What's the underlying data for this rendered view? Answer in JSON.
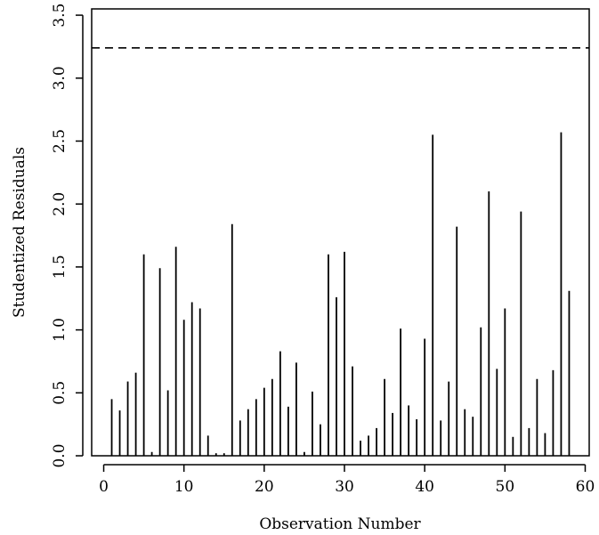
{
  "chart_data": {
    "type": "bar",
    "xlabel": "Observation Number",
    "ylabel": "Studentized Residuals",
    "xlim": [
      -1.5,
      60.5
    ],
    "ylim": [
      0.0,
      3.55
    ],
    "x_ticks": [
      0,
      10,
      20,
      30,
      40,
      50,
      60
    ],
    "x_tick_labels": [
      "0",
      "10",
      "20",
      "30",
      "40",
      "50",
      "60"
    ],
    "y_ticks": [
      0.0,
      0.5,
      1.0,
      1.5,
      2.0,
      2.5,
      3.0,
      3.5
    ],
    "y_tick_labels": [
      "0.0",
      "0.5",
      "1.0",
      "1.5",
      "2.0",
      "2.5",
      "3.0",
      "3.5"
    ],
    "reference_line": {
      "y": 3.24,
      "style": "dashed"
    },
    "grid": false,
    "x": [
      1,
      2,
      3,
      4,
      5,
      6,
      7,
      8,
      9,
      10,
      11,
      12,
      13,
      14,
      15,
      16,
      17,
      18,
      19,
      20,
      21,
      22,
      23,
      24,
      25,
      26,
      27,
      28,
      29,
      30,
      31,
      32,
      33,
      34,
      35,
      36,
      37,
      38,
      39,
      40,
      41,
      42,
      43,
      44,
      45,
      46,
      47,
      48,
      49,
      50,
      51,
      52,
      53,
      54,
      55,
      56,
      57,
      58
    ],
    "values": [
      0.45,
      0.36,
      0.59,
      0.66,
      1.6,
      0.03,
      1.49,
      0.52,
      1.66,
      1.08,
      1.22,
      1.17,
      0.16,
      0.02,
      0.02,
      1.84,
      0.28,
      0.37,
      0.45,
      0.54,
      0.61,
      0.83,
      0.39,
      0.74,
      0.03,
      0.51,
      0.25,
      1.6,
      1.26,
      1.62,
      0.71,
      0.12,
      0.16,
      0.22,
      0.61,
      0.34,
      1.01,
      0.4,
      0.29,
      0.93,
      2.55,
      0.28,
      0.59,
      1.82,
      0.37,
      0.31,
      1.02,
      2.1,
      0.69,
      1.17,
      0.15,
      1.94,
      0.22,
      0.61,
      0.18,
      0.68,
      2.57,
      1.31
    ]
  }
}
